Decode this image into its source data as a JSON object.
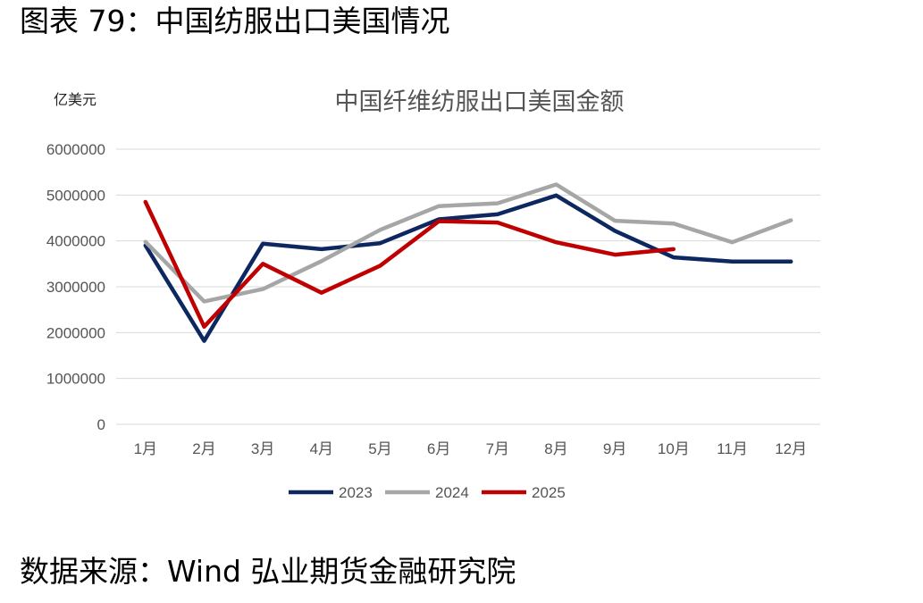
{
  "figure_title": "图表 79：中国纺服出口美国情况",
  "unit_label": "亿美元",
  "source_text": "数据来源：Wind 弘业期货金融研究院",
  "colors": {
    "2023": "#0d2860",
    "2024": "#a6a6a6",
    "2025": "#c00000",
    "grid": "#d9d9d9"
  },
  "chart_data": {
    "type": "line",
    "title": "中国纤维纺服出口美国金额",
    "ylabel": "亿美元",
    "xlabel": "",
    "ylim": [
      0,
      6000000
    ],
    "yticks": [
      0,
      1000000,
      2000000,
      3000000,
      4000000,
      5000000,
      6000000
    ],
    "categories": [
      "1月",
      "2月",
      "3月",
      "4月",
      "5月",
      "6月",
      "7月",
      "8月",
      "9月",
      "10月",
      "11月",
      "12月"
    ],
    "grid": true,
    "legend": "bottom",
    "series": [
      {
        "name": "2023",
        "values": [
          3900000,
          1820000,
          3940000,
          3820000,
          3950000,
          4470000,
          4580000,
          4990000,
          4220000,
          3640000,
          3550000,
          3550000
        ]
      },
      {
        "name": "2024",
        "values": [
          3980000,
          2680000,
          2950000,
          3560000,
          4240000,
          4760000,
          4820000,
          5230000,
          4440000,
          4380000,
          3970000,
          4450000
        ]
      },
      {
        "name": "2025",
        "values": [
          4850000,
          2130000,
          3500000,
          2870000,
          3460000,
          4430000,
          4400000,
          3970000,
          3700000,
          3820000,
          null,
          null
        ]
      }
    ]
  }
}
